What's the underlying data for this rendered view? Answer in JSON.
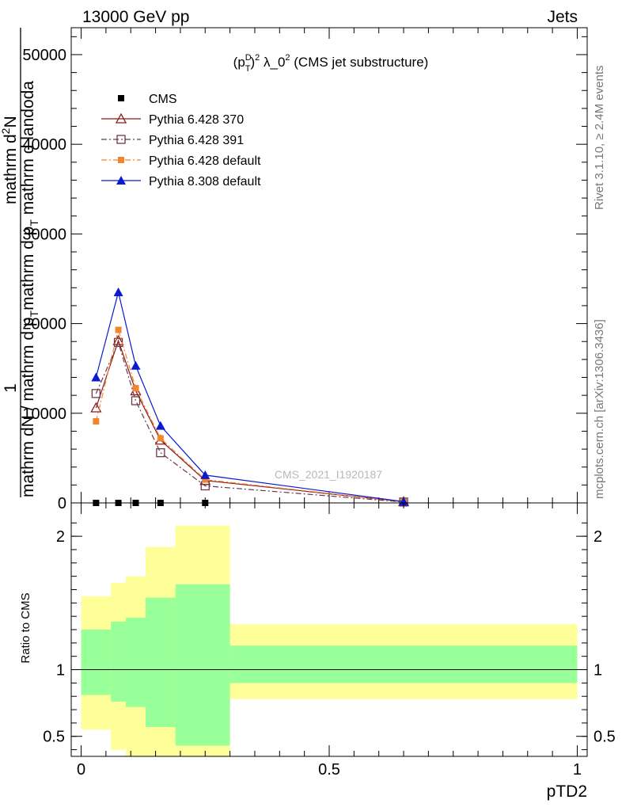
{
  "header": {
    "left": "13000 GeV pp",
    "right": "Jets"
  },
  "side_text": {
    "rivet": "Rivet 3.1.10, ≥ 2.4M events",
    "mcplots": "mcplots.cern.ch [arXiv:1306.3436]"
  },
  "watermark": "CMS_2021_I1920187",
  "chart_data": {
    "type": "line",
    "title": "(p_T^D)^2 λ_0^2 (CMS jet substructure)",
    "title_parts": {
      "base": "(p",
      "sub": "T",
      "sup1": "D",
      "close": ")",
      "sup2": "2",
      "mid": " λ_0",
      "sup3": "2",
      "rest": " (CMS jet substructure)"
    },
    "xlabel": "pTD2",
    "ylabel_lines": [
      "1",
      "mathrm dN / mathrm d p_T mathrm d p_T mathrm d lambda",
      "mathrm d²N"
    ],
    "ylabel_parts": {
      "one": "1",
      "denominator": "mathrm dN / mathrm d p",
      "denominator_sub": "T",
      "numerator_a": "mathrm d",
      "numerator_sup": "2",
      "numerator_b": "N",
      "numerator_c": "mathrm d p",
      "numerator_sub": "T",
      "numerator_d": " mathrm d lambda",
      "tail": "mathrm d p",
      "tail_sub": "T",
      "tail_b": " mathrm d landoda"
    },
    "xlim": [
      -0.02,
      1.02
    ],
    "ylim": [
      0,
      53000
    ],
    "x_ticks": [
      "0",
      "0.5",
      "1"
    ],
    "y_ticks": [
      "0",
      "10000",
      "20000",
      "30000",
      "40000",
      "50000"
    ],
    "y_tick_values": [
      0,
      10000,
      20000,
      30000,
      40000,
      50000
    ],
    "x_tick_values": [
      0,
      0.5,
      1
    ],
    "legend_position": "top-left",
    "series": [
      {
        "name": "CMS",
        "color": "#000000",
        "marker": "square-filled",
        "line": "none",
        "x": [
          0.03,
          0.075,
          0.11,
          0.16,
          0.25,
          0.65
        ],
        "y": [
          0,
          0,
          0,
          0,
          0,
          0
        ]
      },
      {
        "name": "Pythia 6.428 370",
        "color": "#8b1a1a",
        "marker": "triangle-open",
        "line": "solid",
        "x": [
          0.03,
          0.075,
          0.11,
          0.16,
          0.25,
          0.65
        ],
        "y": [
          10600,
          18100,
          12500,
          7000,
          2500,
          130
        ]
      },
      {
        "name": "Pythia 6.428 391",
        "color": "#6b3a4a",
        "marker": "square-open",
        "line": "dashdot",
        "x": [
          0.03,
          0.075,
          0.11,
          0.16,
          0.25,
          0.65
        ],
        "y": [
          12200,
          17900,
          11400,
          5600,
          1900,
          100
        ]
      },
      {
        "name": "Pythia 6.428 default",
        "color": "#f28530",
        "marker": "square-filled-small",
        "line": "dashdot",
        "x": [
          0.03,
          0.075,
          0.11,
          0.16,
          0.25,
          0.65
        ],
        "y": [
          9100,
          19300,
          12800,
          7200,
          2600,
          130
        ]
      },
      {
        "name": "Pythia 8.308 default",
        "color": "#0a1ad0",
        "marker": "triangle-filled",
        "line": "solid",
        "x": [
          0.03,
          0.075,
          0.11,
          0.16,
          0.25,
          0.65
        ],
        "y": [
          14000,
          23500,
          15300,
          8600,
          3100,
          140
        ]
      }
    ]
  },
  "ratio_data": {
    "ylabel": "Ratio to CMS",
    "ylim": [
      0.35,
      2.25
    ],
    "y_ticks": [
      "0.5",
      "1",
      "2"
    ],
    "y_tick_values": [
      0.5,
      1,
      2
    ],
    "reference": 1,
    "bands": [
      {
        "x0": 0.0,
        "x1": 0.06,
        "yellow": [
          0.55,
          1.55
        ],
        "green": [
          0.81,
          1.3
        ]
      },
      {
        "x0": 0.06,
        "x1": 0.09,
        "yellow": [
          0.4,
          1.65
        ],
        "green": [
          0.76,
          1.36
        ]
      },
      {
        "x0": 0.09,
        "x1": 0.13,
        "yellow": [
          0.3,
          1.7
        ],
        "green": [
          0.72,
          1.39
        ]
      },
      {
        "x0": 0.13,
        "x1": 0.19,
        "yellow": [
          0.1,
          1.92
        ],
        "green": [
          0.57,
          1.54
        ]
      },
      {
        "x0": 0.19,
        "x1": 0.3,
        "yellow": [
          0.0,
          2.08
        ],
        "green": [
          0.43,
          1.64
        ]
      },
      {
        "x0": 0.3,
        "x1": 1.0,
        "yellow": [
          0.78,
          1.34
        ],
        "green": [
          0.9,
          1.18
        ]
      }
    ],
    "colors": {
      "yellow": "#ffff99",
      "green": "#99ff99"
    }
  }
}
